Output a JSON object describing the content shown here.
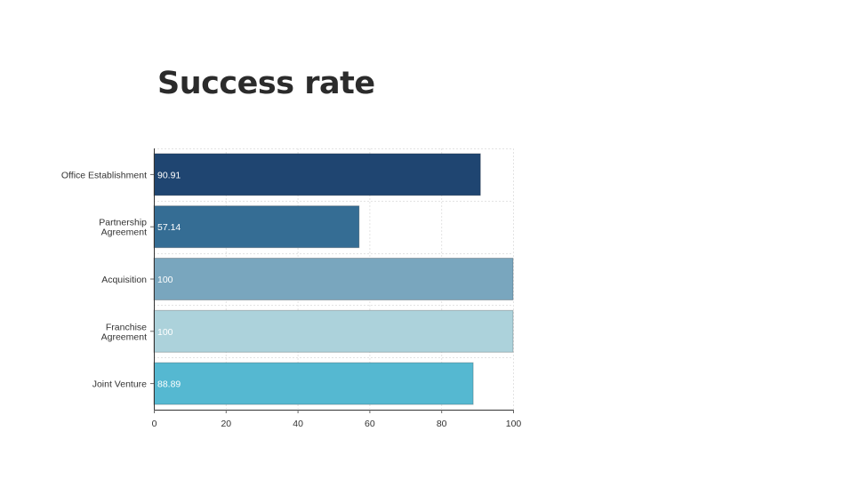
{
  "page": {
    "title": "Success rate"
  },
  "chart_data": {
    "type": "bar",
    "orientation": "horizontal",
    "title": "Success rate",
    "categories": [
      [
        "Office Establishment"
      ],
      [
        "Partnership",
        "Agreement"
      ],
      [
        "Acquisition"
      ],
      [
        "Franchise",
        "Agreement"
      ],
      [
        "Joint Venture"
      ]
    ],
    "values": [
      90.91,
      57.14,
      100,
      100,
      88.89
    ],
    "value_labels": [
      "90.91",
      "57.14",
      "100",
      "100",
      "88.89"
    ],
    "colors": [
      "#1f4571",
      "#356d94",
      "#79a6be",
      "#acd2db",
      "#55b8d1"
    ],
    "xlim": [
      0,
      100
    ],
    "xticks": [
      0,
      20,
      40,
      60,
      80,
      100
    ],
    "grid": true,
    "xlabel": "",
    "ylabel": ""
  }
}
